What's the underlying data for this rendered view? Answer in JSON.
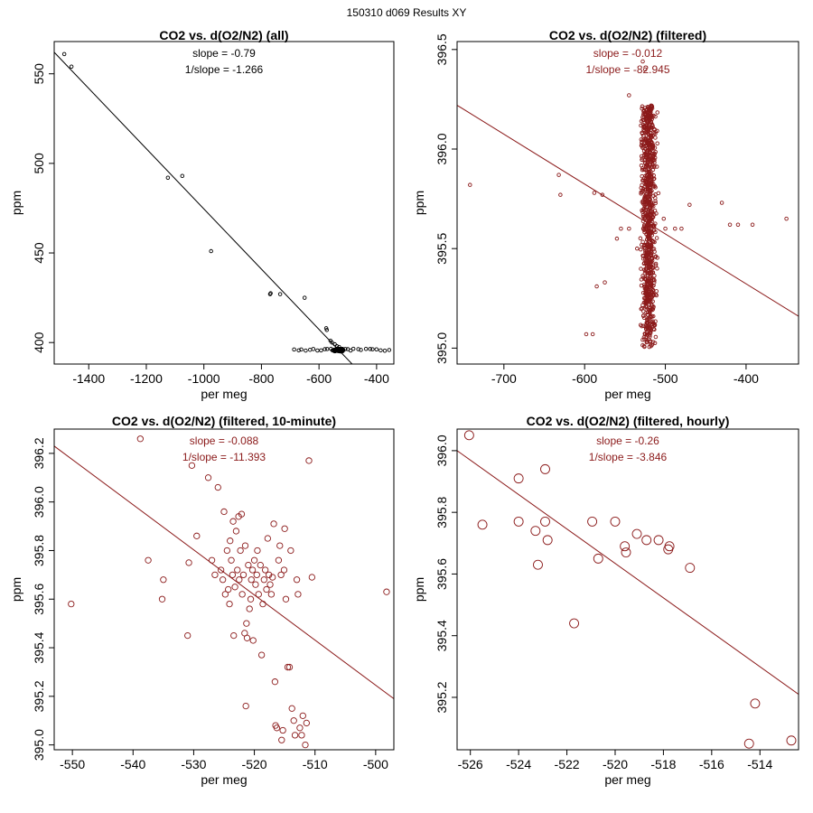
{
  "figure_title": "150310   d069   Results XY",
  "chart_data": [
    {
      "type": "scatter",
      "title": "CO2 vs. d(O2/N2) (all)",
      "xlabel": "per meg",
      "ylabel": "ppm",
      "xlim": [
        -1520,
        -340
      ],
      "ylim": [
        388,
        568
      ],
      "xticks": [
        -1400,
        -1200,
        -1000,
        -800,
        -600,
        -400
      ],
      "yticks": [
        400,
        450,
        500,
        550
      ],
      "xtick_labels": [
        "-1400",
        "-1200",
        "-1000",
        "-800",
        "-600",
        "-400"
      ],
      "ytick_labels": [
        "400",
        "450",
        "500",
        "550"
      ],
      "color": "#000000",
      "point_color": "#000000",
      "fit_line": {
        "from": [
          -1520,
          562
        ],
        "to": [
          -485,
          388
        ]
      },
      "annotations": [
        "slope = -0.79",
        "1/slope = -1.266"
      ],
      "points": [
        [
          -1485,
          561
        ],
        [
          -1460,
          554
        ],
        [
          -1125,
          492
        ],
        [
          -1075,
          493
        ],
        [
          -975,
          451
        ],
        [
          -770,
          427
        ],
        [
          -768,
          427.5
        ],
        [
          -735,
          427
        ],
        [
          -650,
          425
        ],
        [
          -575,
          408
        ],
        [
          -573,
          407
        ],
        [
          -560,
          401
        ],
        [
          -555,
          400
        ],
        [
          -545,
          399
        ],
        [
          -538,
          398
        ],
        [
          -530,
          397.5
        ]
      ],
      "cluster": {
        "x": [
          -560,
          -505
        ],
        "y": [
          395,
          396.5
        ],
        "n": 60
      },
      "strip": {
        "x": [
          -690,
          -350
        ],
        "y": [
          396
        ],
        "n": 26
      }
    },
    {
      "type": "scatter",
      "title": "CO2 vs. d(O2/N2) (filtered)",
      "xlabel": "per meg",
      "ylabel": "ppm",
      "xlim": [
        -758,
        -335
      ],
      "ylim": [
        394.92,
        396.54
      ],
      "xticks": [
        -700,
        -600,
        -500,
        -400
      ],
      "yticks": [
        395.0,
        395.5,
        396.0,
        396.5
      ],
      "xtick_labels": [
        "-700",
        "-600",
        "-500",
        "-400"
      ],
      "ytick_labels": [
        "395.0",
        "395.5",
        "396.0",
        "396.5"
      ],
      "color": "#8b1a1a",
      "point_color": "#8b1a1a",
      "fit_line": {
        "from": [
          -758,
          396.22
        ],
        "to": [
          -335,
          395.16
        ]
      },
      "annotations": [
        "slope = -0.012",
        "1/slope = -82.945"
      ],
      "points": [
        [
          -742,
          395.82
        ],
        [
          -632,
          395.87
        ],
        [
          -630,
          395.77
        ],
        [
          -588,
          395.78
        ],
        [
          -578,
          395.77
        ],
        [
          -590,
          395.07
        ],
        [
          -598,
          395.07
        ],
        [
          -585,
          395.31
        ],
        [
          -575,
          395.33
        ],
        [
          -545,
          396.27
        ],
        [
          -502,
          395.65
        ],
        [
          -500,
          395.6
        ],
        [
          -488,
          395.6
        ],
        [
          -480,
          395.6
        ],
        [
          -470,
          395.72
        ],
        [
          -430,
          395.73
        ],
        [
          -420,
          395.62
        ],
        [
          -410,
          395.62
        ],
        [
          -392,
          395.62
        ],
        [
          -350,
          395.65
        ],
        [
          -545,
          395.6
        ],
        [
          -555,
          395.6
        ],
        [
          -560,
          395.55
        ],
        [
          -535,
          395.5
        ],
        [
          -528,
          396.44
        ],
        [
          -525,
          396.4
        ]
      ],
      "cluster": {
        "x": [
          -533,
          -508
        ],
        "y": [
          395.0,
          396.22
        ],
        "n": 900
      }
    },
    {
      "type": "scatter",
      "title": "CO2 vs. d(O2/N2) (filtered, 10-minute)",
      "xlabel": "per meg",
      "ylabel": "ppm",
      "xlim": [
        -553,
        -497
      ],
      "ylim": [
        394.98,
        396.3
      ],
      "xticks": [
        -550,
        -540,
        -530,
        -520,
        -510,
        -500
      ],
      "yticks": [
        395.0,
        395.2,
        395.4,
        395.6,
        395.8,
        396.0,
        396.2
      ],
      "xtick_labels": [
        "-550",
        "-540",
        "-530",
        "-520",
        "-510",
        "-500"
      ],
      "ytick_labels": [
        "395.0",
        "395.2",
        "395.4",
        "395.6",
        "395.8",
        "396.0",
        "396.2"
      ],
      "color": "#8b1a1a",
      "point_color": "#8b1a1a",
      "fit_line": {
        "from": [
          -553,
          396.23
        ],
        "to": [
          -497,
          395.19
        ]
      },
      "annotations": [
        "slope = -0.088",
        "1/slope = -11.393"
      ],
      "points": [
        [
          -550.2,
          395.58
        ],
        [
          -538.8,
          396.26
        ],
        [
          -537.5,
          395.76
        ],
        [
          -535.2,
          395.6
        ],
        [
          -535,
          395.68
        ],
        [
          -531,
          395.45
        ],
        [
          -530.8,
          395.75
        ],
        [
          -530.3,
          396.15
        ],
        [
          -529.5,
          395.86
        ],
        [
          -527.6,
          396.1
        ],
        [
          -527,
          395.76
        ],
        [
          -526.5,
          395.7
        ],
        [
          -526,
          396.06
        ],
        [
          -525.5,
          395.72
        ],
        [
          -525.2,
          395.68
        ],
        [
          -525,
          395.96
        ],
        [
          -524.8,
          395.62
        ],
        [
          -524.5,
          395.8
        ],
        [
          -524.3,
          395.64
        ],
        [
          -524.1,
          395.58
        ],
        [
          -524,
          395.84
        ],
        [
          -523.8,
          395.76
        ],
        [
          -523.6,
          395.7
        ],
        [
          -523.5,
          395.92
        ],
        [
          -523.4,
          395.45
        ],
        [
          -523.2,
          395.65
        ],
        [
          -523,
          395.88
        ],
        [
          -522.8,
          395.72
        ],
        [
          -522.6,
          395.94
        ],
        [
          -522.5,
          395.68
        ],
        [
          -522.3,
          395.8
        ],
        [
          -522.1,
          395.95
        ],
        [
          -522,
          395.62
        ],
        [
          -521.8,
          395.7
        ],
        [
          -521.6,
          395.46
        ],
        [
          -521.5,
          395.82
        ],
        [
          -521.4,
          395.16
        ],
        [
          -521.3,
          395.5
        ],
        [
          -521.2,
          395.44
        ],
        [
          -521,
          395.74
        ],
        [
          -520.8,
          395.56
        ],
        [
          -520.6,
          395.6
        ],
        [
          -520.5,
          395.68
        ],
        [
          -520.3,
          395.72
        ],
        [
          -520.2,
          395.43
        ],
        [
          -520,
          395.76
        ],
        [
          -519.8,
          395.66
        ],
        [
          -519.6,
          395.7
        ],
        [
          -519.5,
          395.8
        ],
        [
          -519.3,
          395.62
        ],
        [
          -519,
          395.74
        ],
        [
          -518.8,
          395.37
        ],
        [
          -518.6,
          395.58
        ],
        [
          -518.4,
          395.68
        ],
        [
          -518.2,
          395.72
        ],
        [
          -518,
          395.64
        ],
        [
          -517.8,
          395.85
        ],
        [
          -517.6,
          395.7
        ],
        [
          -517.4,
          395.66
        ],
        [
          -517.2,
          395.62
        ],
        [
          -517,
          395.69
        ],
        [
          -516.8,
          395.91
        ],
        [
          -516.6,
          395.26
        ],
        [
          -516.5,
          395.08
        ],
        [
          -516.3,
          395.07
        ],
        [
          -516,
          395.76
        ],
        [
          -515.8,
          395.82
        ],
        [
          -515.6,
          395.7
        ],
        [
          -515.5,
          395.02
        ],
        [
          -515.3,
          395.06
        ],
        [
          -515.1,
          395.72
        ],
        [
          -515,
          395.89
        ],
        [
          -514.8,
          395.6
        ],
        [
          -514.5,
          395.32
        ],
        [
          -514.2,
          395.32
        ],
        [
          -514,
          395.8
        ],
        [
          -513.8,
          395.15
        ],
        [
          -513.5,
          395.1
        ],
        [
          -513.3,
          395.04
        ],
        [
          -513,
          395.68
        ],
        [
          -512.8,
          395.62
        ],
        [
          -512.5,
          395.07
        ],
        [
          -512.2,
          395.04
        ],
        [
          -512,
          395.12
        ],
        [
          -511.6,
          395.0
        ],
        [
          -511.4,
          395.09
        ],
        [
          -511,
          396.17
        ],
        [
          -510.5,
          395.69
        ],
        [
          -498.2,
          395.63
        ]
      ]
    },
    {
      "type": "scatter",
      "title": "CO2 vs. d(O2/N2) (filtered, hourly)",
      "xlabel": "per meg",
      "ylabel": "ppm",
      "xlim": [
        -526.55,
        -512.4
      ],
      "ylim": [
        395.03,
        396.07
      ],
      "xticks": [
        -526,
        -524,
        -522,
        -520,
        -518,
        -516,
        -514
      ],
      "yticks": [
        395.2,
        395.4,
        395.6,
        395.8,
        396.0
      ],
      "xtick_labels": [
        "-526",
        "-524",
        "-522",
        "-520",
        "-518",
        "-516",
        "-514"
      ],
      "ytick_labels": [
        "395.2",
        "395.4",
        "395.6",
        "395.8",
        "396.0"
      ],
      "color": "#8b1a1a",
      "point_color": "#8b1a1a",
      "fit_line": {
        "from": [
          -526.55,
          396.0
        ],
        "to": [
          -512.4,
          395.21
        ]
      },
      "annotations": [
        "slope = -0.26",
        "1/slope = -3.846"
      ],
      "points": [
        [
          -526.05,
          396.05
        ],
        [
          -525.5,
          395.76
        ],
        [
          -524.0,
          395.91
        ],
        [
          -524.0,
          395.77
        ],
        [
          -523.3,
          395.74
        ],
        [
          -523.2,
          395.63
        ],
        [
          -522.9,
          395.94
        ],
        [
          -522.9,
          395.77
        ],
        [
          -522.8,
          395.71
        ],
        [
          -521.7,
          395.44
        ],
        [
          -520.95,
          395.77
        ],
        [
          -520.7,
          395.65
        ],
        [
          -520.0,
          395.77
        ],
        [
          -519.6,
          395.69
        ],
        [
          -519.55,
          395.67
        ],
        [
          -519.1,
          395.73
        ],
        [
          -518.7,
          395.71
        ],
        [
          -518.2,
          395.71
        ],
        [
          -517.8,
          395.68
        ],
        [
          -517.75,
          395.69
        ],
        [
          -516.9,
          395.62
        ],
        [
          -514.45,
          395.05
        ],
        [
          -514.2,
          395.18
        ],
        [
          -512.7,
          395.06
        ]
      ]
    }
  ]
}
